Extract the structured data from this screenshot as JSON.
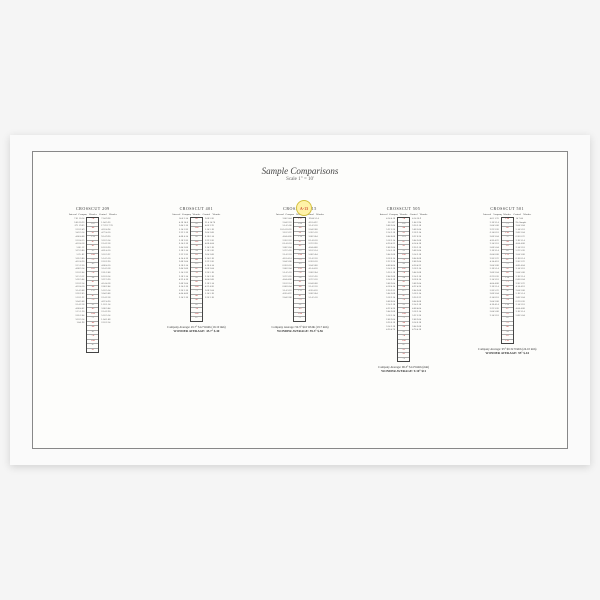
{
  "title": "Sample Comparisons",
  "subtitle": "Scale 1\" = 10'",
  "tag": "A-13",
  "sections": [
    {
      "title": "CROSSCUT 209",
      "headers": [
        "Interval",
        "Company",
        "Wonder",
        "Control",
        "Wonder"
      ],
      "rows": 30,
      "leftVals": [
        "7.61 10.14",
        "3.00 10.26",
        ".371 19.63",
        "2.18 2.49",
        "3.43 3.14",
        "4.00 4.08",
        "2.18 4.15",
        "4.18 4.18",
        "5.66 .12",
        "3.23 3.80",
        "5.25 .82",
        "3.05 3.80",
        "4.16 4.20",
        "2.15 2.50",
        "4.08 3.14",
        "2.18 2.04",
        "3.15 3.12",
        "5.20 5.04",
        "2.18 2.14",
        "4.18 4.10",
        "3.14 3.08",
        "2.20 2.05",
        "1.18 1.22",
        "3.04 3.08",
        "2.14 2.18",
        "4.08 4.02",
        "1.15 1.20",
        "2.05 2.04",
        "3.18 3.14",
        "1.04 .98"
      ],
      "rightVals": [
        "7.64 9.38",
        "1.04 5.36",
        "17.22 17.70",
        "4.18 4.24",
        "4.73 4.10",
        "9.14 9.20",
        "3.18 3.14",
        "2.14 2.18",
        "6.18 6.20",
        "4.05 4.10",
        "3.18 3.22",
        "5.14 5.10",
        "2.18 2.20",
        "4.08 4.10",
        "3.14 3.18",
        "2.05 2.08",
        "6.18 6.14",
        "3.22 3.20",
        "4.14 4.18",
        "2.08 2.04",
        "5.18 5.14",
        "3.04 3.08",
        "2.14 2.18",
        "4.22 4.20",
        "1.18 1.14",
        "3.08 3.04",
        "2.14 2.20",
        "5.18 5.14",
        "1.04 1.08",
        "2.18 2.14"
      ],
      "coreVals": [
        ".74",
        "1.02",
        ".88",
        ".91",
        "1.14",
        ".67",
        ".82",
        ".95",
        "1.08",
        ".73",
        ".89",
        "1.02",
        ".76",
        ".94",
        ".81",
        ".68",
        "1.12",
        ".87",
        ".79",
        ".92",
        ".85",
        "1.04",
        ".71",
        ".88",
        ".96",
        ".82",
        ".74",
        "1.08",
        ".67",
        ".91"
      ],
      "footer": [
        "",
        ""
      ]
    },
    {
      "title": "CROSSCUT 401",
      "headers": [
        "Interval",
        "Company",
        "Wonder",
        "Control",
        "Wonder"
      ],
      "rows": 23,
      "leftVals": [
        "14.0 3.14",
        "4.18 14.8",
        "2.04 3.18",
        "5.14 5.20",
        "3.22 3.18",
        "4.08 4.14",
        "2.18 2.20",
        "6.14 6.18",
        "3.04 3.08",
        "5.18 5.14",
        "2.22 2.20",
        "4.14 4.18",
        "3.08 3.04",
        "6.18 6.14",
        "2.04 2.08",
        "5.14 5.20",
        "3.18 3.14",
        "4.22 4.18",
        "2.08 2.04",
        "6.14 6.18",
        "3.20 3.18",
        "4.04 4.08",
        "2.14 2.18"
      ],
      "rightVals": [
        "3.08 5.20",
        "21.4 14.70",
        "4.00 3.70",
        "5.14 5.18",
        "2.04 3.08",
        "6.18 6.14",
        "3.22 3.20",
        "4.08 4.04",
        "2.14 2.18",
        "5.18 5.20",
        "3.04 3.08",
        "6.14 6.18",
        "2.22 2.20",
        "4.18 4.14",
        "3.08 3.04",
        "5.20 5.18",
        "2.14 2.18",
        "6.04 6.08",
        "3.18 3.14",
        "4.22 4.20",
        "2.08 2.04",
        "5.14 5.18",
        "3.20 3.18"
      ],
      "coreVals": [
        ".82",
        ".95",
        "1.08",
        ".73",
        ".89",
        "1.02",
        ".76",
        ".94",
        ".81",
        ".68",
        "1.12",
        ".87",
        ".79",
        ".92",
        ".85",
        "1.04",
        ".71",
        ".88",
        ".96",
        ".82",
        ".74",
        "1.08",
        ".67"
      ],
      "footer": [
        "Company Average: 45.7° $12 Width (19.10 mm)",
        "WONDER AVERAGE: 45.7° $.40"
      ]
    },
    {
      "title": "CROSSCUT 515",
      "headers": [
        "Interval",
        "Company",
        "Wonder",
        "Control",
        "Wonder"
      ],
      "rows": 23,
      "leftVals": [
        "3.00 3.44",
        "2.04 2.18",
        "5.14 5.08",
        "10.14 10.20",
        "3.18 3.22",
        "4.04 4.08",
        "2.20 2.18",
        "6.14 6.18",
        "3.08 3.04",
        "5.22 5.20",
        "2.14 2.18",
        "4.18 4.14",
        "3.04 3.08",
        "6.20 6.18",
        "2.08 2.04",
        "5.14 5.18",
        "3.22 3.20",
        "4.04 4.08",
        "2.18 2.14",
        "6.08 6.04",
        "3.14 3.18",
        "4.20 4.22",
        "2.04 2.08"
      ],
      "rightVals": [
        "19.04 5.14",
        "4.18 4.22",
        "3.14 3.18",
        "2.04 2.08",
        "5.20 5.18",
        "3.08 3.04",
        "6.14 6.18",
        "2.22 2.20",
        "4.04 4.08",
        "3.18 3.14",
        "5.08 5.04",
        "2.14 2.18",
        "6.20 6.18",
        "3.04 3.08",
        "4.14 4.18",
        "2.08 2.04",
        "5.18 5.20",
        "3.22 3.18",
        "6.04 6.08",
        "2.14 2.18",
        "4.20 4.18",
        "3.08 3.04",
        "5.14 5.18"
      ],
      "coreVals": [
        "2.17",
        "1.04",
        ".88",
        ".91",
        "1.14",
        ".67",
        ".82",
        ".95",
        "1.08",
        ".73",
        ".89",
        "1.02",
        ".76",
        ".94",
        ".81",
        ".68",
        "1.12",
        ".87",
        ".79",
        ".92",
        ".85",
        "1.04",
        ".71"
      ],
      "footer": [
        "Company Average: 59.3° $16 Width (19.7 mm)",
        "WONDER AVERAGE: 59.3° $.56"
      ]
    },
    {
      "title": "CROSSCUT 505",
      "headers": [
        "Interval",
        "Company",
        "Wonder",
        "Control",
        "Wonder"
      ],
      "rows": 32,
      "leftVals": [
        "4.14 4.18",
        "20 .207",
        "3.08 3.04",
        "5.22 5.20",
        "2.14 2.18",
        "6.04 6.08",
        "3.18 3.14",
        "4.20 4.22",
        "2.08 2.04",
        "5.14 5.18",
        "3.04 3.08",
        "6.18 6.14",
        "2.22 2.20",
        "4.08 4.04",
        "3.14 3.18",
        "5.20 5.18",
        "2.04 2.08",
        "6.14 6.18",
        "3.08 3.04",
        "4.18 4.14",
        "2.20 2.22",
        "5.04 5.08",
        "3.18 3.14",
        "6.08 6.04",
        "2.14 2.18",
        "4.22 4.20",
        "3.04 3.08",
        "5.18 5.14",
        "2.08 2.04",
        "6.20 6.18",
        "3.14 3.18",
        "4.20 4.70"
      ],
      "rightVals": [
        "4.14 10.9",
        "1.04 1.94",
        "3.20 3.18",
        "5.08 5.04",
        "2.18 2.14",
        "6.22 6.20",
        "3.04 3.08",
        "4.14 4.18",
        "2.20 2.18",
        "5.08 5.04",
        "3.14 3.18",
        "6.04 6.08",
        "2.08 2.04",
        "4.20 4.22",
        "3.18 3.14",
        "5.04 5.08",
        "2.14 2.18",
        "6.18 6.14",
        "3.08 3.04",
        "4.22 4.20",
        "2.04 2.08",
        "5.18 5.14",
        "3.20 3.22",
        "6.04 6.08",
        "2.14 2.18",
        "4.08 4.04",
        "3.18 3.14",
        "5.22 5.20",
        "2.08 2.04",
        "6.14 6.18",
        "3.04 3.08",
        "4.70 4.18"
      ],
      "coreVals": [
        ".74",
        "1.02",
        ".88",
        ".91",
        "1.14",
        ".67",
        ".82",
        ".95",
        "1.08",
        ".73",
        ".89",
        "1.02",
        ".76",
        ".94",
        ".81",
        ".68",
        "1.12",
        ".87",
        ".79",
        ".92",
        ".85",
        "1.04",
        ".71",
        ".88",
        ".96",
        ".82",
        ".74",
        "1.08",
        ".67",
        ".91",
        ".85",
        ".79"
      ],
      "footer": [
        "Company Average: 96.3° $14 Width (mm)",
        "WONDER AVERAGE: 9.10° $11"
      ]
    },
    {
      "title": "CROSSCUT 501",
      "headers": [
        "Interval",
        "Company",
        "Wonder",
        "Control",
        "Wonder"
      ],
      "rows": 28,
      "leftVals": [
        "4.01 1.70",
        "3.18 3.14",
        "5.04 5.08",
        "2.22 2.20",
        "6.14 6.18",
        "3.08 3.04",
        "4.20 4.22",
        "2.14 2.18",
        "5.08 5.04",
        "3.18 3.14",
        "6.04 6.08",
        "2.20 2.22",
        "4.14 4.18",
        "3.04 3.08",
        "5.18 5.14",
        "2.08 2.04",
        "6.22 6.20",
        "3.14 3.18",
        "4.04 4.08",
        "2.18 2.14",
        "5.20 5.22",
        "3.08 3.04",
        "6.14 6.18",
        "2.04 2.08",
        "4.18 4.14",
        "3.22 3.20",
        "5.04 5.08",
        "2.14 2.18"
      ],
      "rightVals": [
        "14 7.04",
        "No Sample",
        "3.04 3.84",
        "5.14 5.18",
        "2.08 2.04",
        "6.20 6.22",
        "3.18 3.14",
        "4.04 4.08",
        "2.14 2.18",
        "5.22 5.20",
        "3.04 3.08",
        "6.18 6.14",
        "2.20 2.22",
        "4.08 4.04",
        "3.14 3.18",
        "5.04 5.08",
        "2.18 2.14",
        "6.08 6.04",
        "3.20 3.22",
        "4.14 4.18",
        "2.04 2.08",
        "5.18 5.14",
        "3.08 3.04",
        "6.22 6.20",
        "2.14 2.18",
        "4.04 4.08",
        "3.18 3.14",
        "5.08 5.04"
      ],
      "coreVals": [
        "1.08",
        ".73",
        ".89",
        "1.02",
        ".76",
        ".94",
        ".81",
        ".68",
        "1.12",
        ".87",
        ".79",
        ".92",
        ".85",
        "1.04",
        ".71",
        ".88",
        ".96",
        ".82",
        ".74",
        "1.08",
        ".67",
        ".91",
        ".85",
        ".79",
        ".88",
        ".94",
        ".81",
        "1.02"
      ],
      "footer": [
        "Company Average: 95° $0.32 Width (24.10 mm)",
        "WONDER AVERAGE: 95° $.44"
      ]
    }
  ]
}
